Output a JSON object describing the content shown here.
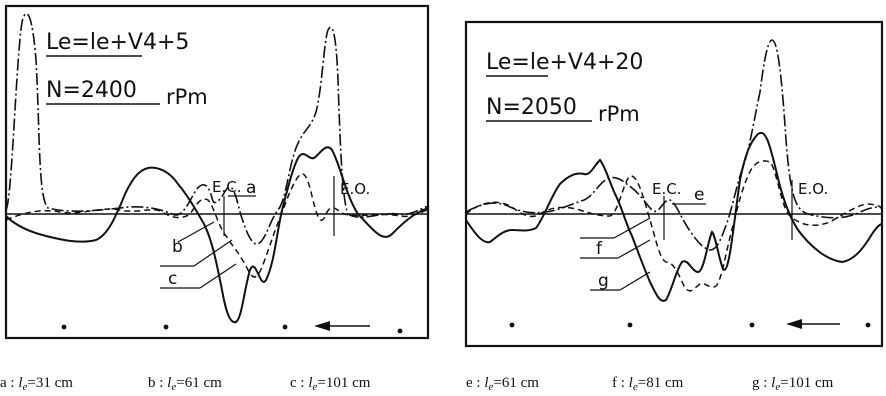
{
  "chart_data": [
    {
      "type": "line",
      "annotations": {
        "le_formula": "Le=le+V4+5",
        "speed": "N=2400",
        "speed_unit": "rPm",
        "ec_label": "E.C.",
        "eo_label": "E.O."
      },
      "series": [
        {
          "name": "a",
          "style": "dash-dot",
          "label": "a"
        },
        {
          "name": "b",
          "style": "dashed",
          "label": "b"
        },
        {
          "name": "c",
          "style": "solid",
          "label": "c"
        }
      ],
      "caption": [
        {
          "key": "a",
          "sep": " : ",
          "var": "l",
          "sub": "e",
          "eq": "=31 cm"
        },
        {
          "key": "b",
          "sep": " : ",
          "var": "l",
          "sub": "e",
          "eq": "=61 cm"
        },
        {
          "key": "c",
          "sep": " : ",
          "var": "l",
          "sub": "e",
          "eq": "=101 cm"
        }
      ],
      "grid": false
    },
    {
      "type": "line",
      "annotations": {
        "le_formula": "Le=le+V4+20",
        "speed": "N=2050",
        "speed_unit": "rPm",
        "ec_label": "E.C.",
        "eo_label": "E.O."
      },
      "series": [
        {
          "name": "e",
          "style": "dash-dot",
          "label": "e"
        },
        {
          "name": "f",
          "style": "dashed",
          "label": "f"
        },
        {
          "name": "g",
          "style": "solid",
          "label": "g"
        }
      ],
      "caption": [
        {
          "key": "e",
          "sep": " : ",
          "var": "l",
          "sub": "e",
          "eq": "=61 cm"
        },
        {
          "key": "f",
          "sep": " : ",
          "var": "l",
          "sub": "e",
          "eq": "=81 cm"
        },
        {
          "key": "g",
          "sep": " : ",
          "var": "l",
          "sub": "e",
          "eq": "=101 cm"
        }
      ],
      "grid": false
    }
  ]
}
